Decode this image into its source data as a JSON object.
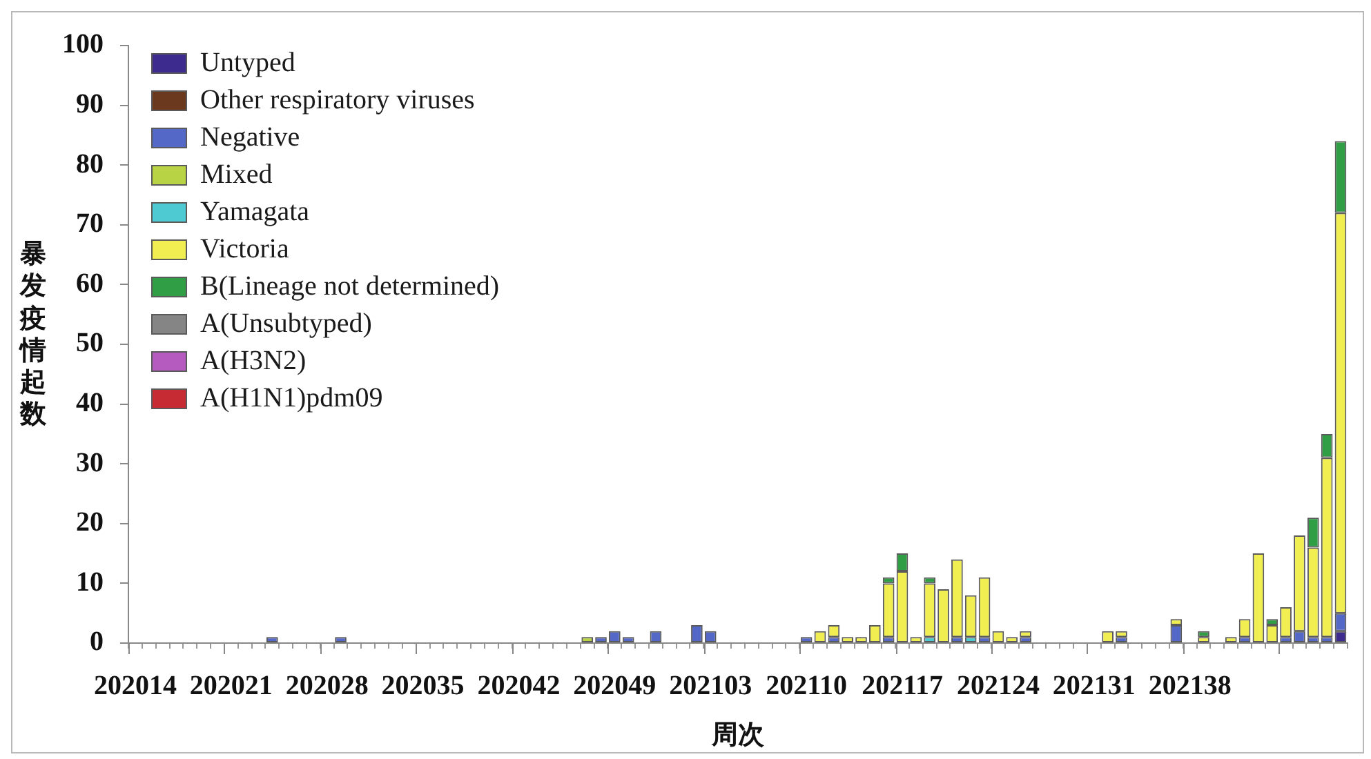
{
  "chart_data": {
    "type": "bar",
    "stacked": true,
    "xlabel": "周次",
    "ylabel": "暴发疫情起数",
    "legend": "top left",
    "ylim": [
      0,
      100
    ],
    "yticks": [
      0,
      10,
      20,
      30,
      40,
      50,
      60,
      70,
      80,
      90,
      100
    ],
    "categories": [
      "202014",
      null,
      null,
      null,
      null,
      null,
      null,
      "202021",
      null,
      null,
      null,
      null,
      null,
      null,
      "202028",
      null,
      null,
      null,
      null,
      null,
      null,
      "202035",
      null,
      null,
      null,
      null,
      null,
      null,
      "202042",
      null,
      null,
      null,
      null,
      null,
      null,
      "202049",
      null,
      null,
      null,
      null,
      null,
      null,
      "202103",
      null,
      null,
      null,
      null,
      null,
      null,
      "202110",
      null,
      null,
      null,
      null,
      null,
      null,
      "202117",
      null,
      null,
      null,
      null,
      null,
      null,
      "202124",
      null,
      null,
      null,
      null,
      null,
      null,
      "202131",
      null,
      null,
      null,
      null,
      null,
      null,
      "202138",
      null,
      null,
      null,
      null,
      null,
      null,
      null,
      null,
      null,
      null,
      null
    ],
    "series": [
      {
        "name": "Untyped",
        "color": "#3d2b8e",
        "values": [
          0,
          0,
          0,
          0,
          0,
          0,
          0,
          0,
          0,
          0,
          0,
          0,
          0,
          0,
          0,
          0,
          0,
          0,
          0,
          0,
          0,
          0,
          0,
          0,
          0,
          0,
          0,
          0,
          0,
          0,
          0,
          0,
          0,
          0,
          0,
          0,
          0,
          0,
          0,
          0,
          0,
          0,
          0,
          0,
          0,
          0,
          0,
          0,
          0,
          0,
          0,
          0,
          0,
          0,
          0,
          0,
          0,
          0,
          0,
          0,
          0,
          0,
          0,
          0,
          0,
          0,
          0,
          0,
          0,
          0,
          0,
          0,
          0,
          0,
          0,
          0,
          0,
          0,
          0,
          0,
          0,
          0,
          0,
          0,
          0,
          0,
          0,
          0,
          2
        ]
      },
      {
        "name": "Other respiratory viruses",
        "color": "#6b3a1e",
        "values": [
          0,
          0,
          0,
          0,
          0,
          0,
          0,
          0,
          0,
          0,
          0,
          0,
          0,
          0,
          0,
          0,
          0,
          0,
          0,
          0,
          0,
          0,
          0,
          0,
          0,
          0,
          0,
          0,
          0,
          0,
          0,
          0,
          0,
          0,
          0,
          0,
          0,
          0,
          0,
          0,
          0,
          0,
          0,
          0,
          0,
          0,
          0,
          0,
          0,
          0,
          0,
          0,
          0,
          0,
          0,
          0,
          0,
          0,
          0,
          0,
          0,
          0,
          0,
          0,
          0,
          0,
          0,
          0,
          0,
          0,
          0,
          0,
          0,
          0,
          0,
          0,
          0,
          0,
          0,
          0,
          0,
          0,
          0,
          0,
          0,
          0,
          0,
          0,
          0
        ]
      },
      {
        "name": "Negative",
        "color": "#5468c8",
        "values": [
          0,
          0,
          0,
          0,
          0,
          0,
          0,
          0,
          0,
          0,
          1,
          0,
          0,
          0,
          0,
          1,
          0,
          0,
          0,
          0,
          0,
          0,
          0,
          0,
          0,
          0,
          0,
          0,
          0,
          0,
          0,
          0,
          0,
          0,
          1,
          2,
          1,
          0,
          2,
          0,
          0,
          3,
          2,
          0,
          0,
          0,
          0,
          0,
          0,
          1,
          0,
          1,
          0,
          0,
          0,
          1,
          0,
          0,
          0,
          0,
          1,
          0,
          1,
          0,
          0,
          1,
          0,
          0,
          0,
          0,
          0,
          0,
          1,
          0,
          0,
          0,
          3,
          0,
          0,
          0,
          0,
          1,
          0,
          0,
          1,
          2,
          1,
          1,
          3
        ]
      },
      {
        "name": "Mixed",
        "color": "#b8d444",
        "values": [
          0,
          0,
          0,
          0,
          0,
          0,
          0,
          0,
          0,
          0,
          0,
          0,
          0,
          0,
          0,
          0,
          0,
          0,
          0,
          0,
          0,
          0,
          0,
          0,
          0,
          0,
          0,
          0,
          0,
          0,
          0,
          0,
          0,
          1,
          0,
          0,
          0,
          0,
          0,
          0,
          0,
          0,
          0,
          0,
          0,
          0,
          0,
          0,
          0,
          0,
          0,
          0,
          0,
          0,
          0,
          0,
          0,
          0,
          0,
          0,
          0,
          0,
          0,
          0,
          0,
          0,
          0,
          0,
          0,
          0,
          0,
          0,
          0,
          0,
          0,
          0,
          0,
          0,
          0,
          0,
          0,
          0,
          0,
          0,
          0,
          0,
          0,
          0,
          0
        ]
      },
      {
        "name": "Yamagata",
        "color": "#4ecad2",
        "values": [
          0,
          0,
          0,
          0,
          0,
          0,
          0,
          0,
          0,
          0,
          0,
          0,
          0,
          0,
          0,
          0,
          0,
          0,
          0,
          0,
          0,
          0,
          0,
          0,
          0,
          0,
          0,
          0,
          0,
          0,
          0,
          0,
          0,
          0,
          0,
          0,
          0,
          0,
          0,
          0,
          0,
          0,
          0,
          0,
          0,
          0,
          0,
          0,
          0,
          0,
          0,
          0,
          0,
          0,
          0,
          0,
          0,
          0,
          1,
          0,
          0,
          1,
          0,
          0,
          0,
          0,
          0,
          0,
          0,
          0,
          0,
          0,
          0,
          0,
          0,
          0,
          0,
          0,
          0,
          0,
          0,
          0,
          0,
          0,
          0,
          0,
          0,
          0,
          0
        ]
      },
      {
        "name": "Victoria",
        "color": "#f0ee50",
        "values": [
          0,
          0,
          0,
          0,
          0,
          0,
          0,
          0,
          0,
          0,
          0,
          0,
          0,
          0,
          0,
          0,
          0,
          0,
          0,
          0,
          0,
          0,
          0,
          0,
          0,
          0,
          0,
          0,
          0,
          0,
          0,
          0,
          0,
          0,
          0,
          0,
          0,
          0,
          0,
          0,
          0,
          0,
          0,
          0,
          0,
          0,
          0,
          0,
          0,
          0,
          2,
          2,
          1,
          1,
          3,
          9,
          12,
          1,
          9,
          9,
          13,
          7,
          10,
          2,
          1,
          1,
          0,
          0,
          0,
          0,
          0,
          2,
          1,
          0,
          0,
          0,
          1,
          0,
          1,
          0,
          1,
          3,
          15,
          3,
          5,
          16,
          15,
          30,
          67
        ]
      },
      {
        "name": "B(Lineage not determined)",
        "color": "#2f9e44",
        "values": [
          0,
          0,
          0,
          0,
          0,
          0,
          0,
          0,
          0,
          0,
          0,
          0,
          0,
          0,
          0,
          0,
          0,
          0,
          0,
          0,
          0,
          0,
          0,
          0,
          0,
          0,
          0,
          0,
          0,
          0,
          0,
          0,
          0,
          0,
          0,
          0,
          0,
          0,
          0,
          0,
          0,
          0,
          0,
          0,
          0,
          0,
          0,
          0,
          0,
          0,
          0,
          0,
          0,
          0,
          0,
          1,
          3,
          0,
          1,
          0,
          0,
          0,
          0,
          0,
          0,
          0,
          0,
          0,
          0,
          0,
          0,
          0,
          0,
          0,
          0,
          0,
          0,
          0,
          1,
          0,
          0,
          0,
          0,
          1,
          0,
          0,
          5,
          4,
          12
        ]
      },
      {
        "name": "A(Unsubtyped)",
        "color": "#858585",
        "values": [
          0,
          0,
          0,
          0,
          0,
          0,
          0,
          0,
          0,
          0,
          0,
          0,
          0,
          0,
          0,
          0,
          0,
          0,
          0,
          0,
          0,
          0,
          0,
          0,
          0,
          0,
          0,
          0,
          0,
          0,
          0,
          0,
          0,
          0,
          0,
          0,
          0,
          0,
          0,
          0,
          0,
          0,
          0,
          0,
          0,
          0,
          0,
          0,
          0,
          0,
          0,
          0,
          0,
          0,
          0,
          0,
          0,
          0,
          0,
          0,
          0,
          0,
          0,
          0,
          0,
          0,
          0,
          0,
          0,
          0,
          0,
          0,
          0,
          0,
          0,
          0,
          0,
          0,
          0,
          0,
          0,
          0,
          0,
          0,
          0,
          0,
          0,
          0,
          0
        ]
      },
      {
        "name": "A(H3N2)",
        "color": "#b55bbf",
        "values": [
          0,
          0,
          0,
          0,
          0,
          0,
          0,
          0,
          0,
          0,
          0,
          0,
          0,
          0,
          0,
          0,
          0,
          0,
          0,
          0,
          0,
          0,
          0,
          0,
          0,
          0,
          0,
          0,
          0,
          0,
          0,
          0,
          0,
          0,
          0,
          0,
          0,
          0,
          0,
          0,
          0,
          0,
          0,
          0,
          0,
          0,
          0,
          0,
          0,
          0,
          0,
          0,
          0,
          0,
          0,
          0,
          0,
          0,
          0,
          0,
          0,
          0,
          0,
          0,
          0,
          0,
          0,
          0,
          0,
          0,
          0,
          0,
          0,
          0,
          0,
          0,
          0,
          0,
          0,
          0,
          0,
          0,
          0,
          0,
          0,
          0,
          0,
          0,
          0
        ]
      },
      {
        "name": "A(H1N1)pdm09",
        "color": "#c62a32",
        "values": [
          0,
          0,
          0,
          0,
          0,
          0,
          0,
          0,
          0,
          0,
          0,
          0,
          0,
          0,
          0,
          0,
          0,
          0,
          0,
          0,
          0,
          0,
          0,
          0,
          0,
          0,
          0,
          0,
          0,
          0,
          0,
          0,
          0,
          0,
          0,
          0,
          0,
          0,
          0,
          0,
          0,
          0,
          0,
          0,
          0,
          0,
          0,
          0,
          0,
          0,
          0,
          0,
          0,
          0,
          0,
          0,
          0,
          0,
          0,
          0,
          0,
          0,
          0,
          0,
          0,
          0,
          0,
          0,
          0,
          0,
          0,
          0,
          0,
          0,
          0,
          0,
          0,
          0,
          0,
          0,
          0,
          0,
          0,
          0,
          0,
          0,
          0,
          0,
          0
        ]
      }
    ]
  }
}
